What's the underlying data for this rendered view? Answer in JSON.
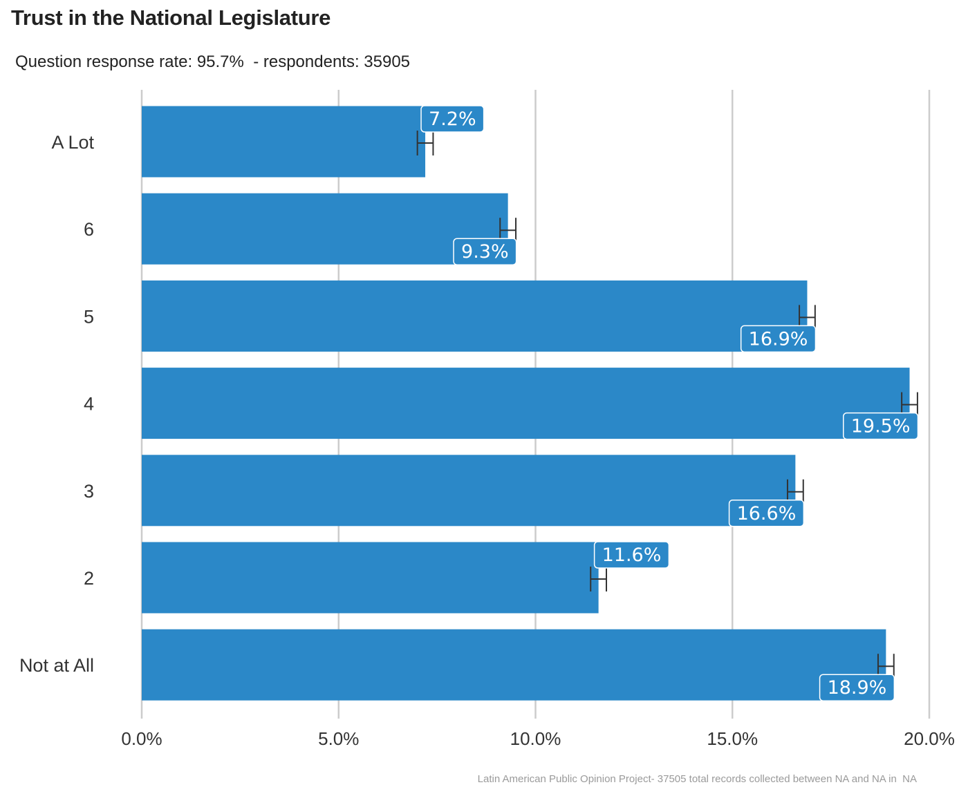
{
  "title": "Trust in the National Legislature",
  "subtitle": "Question response rate: 95.7%  - respondents: 35905",
  "caption": "Latin American Public Opinion Project- 37505 total records collected between NA and NA in  NA",
  "colors": {
    "bar": "#2b88c8",
    "grid": "#cccccc",
    "errorbar": "#333333",
    "label_border": "#ffffff"
  },
  "chart_data": {
    "type": "bar",
    "orientation": "horizontal",
    "categories": [
      "A Lot",
      "6",
      "5",
      "4",
      "3",
      "2",
      "Not at All"
    ],
    "values": [
      7.2,
      9.3,
      16.9,
      19.5,
      16.6,
      11.6,
      18.9
    ],
    "data_labels": [
      "7.2%",
      "9.3%",
      "16.9%",
      "19.5%",
      "16.6%",
      "11.6%",
      "18.9%"
    ],
    "error_bars": [
      {
        "low": 7.0,
        "high": 7.4
      },
      {
        "low": 9.1,
        "high": 9.5
      },
      {
        "low": 16.7,
        "high": 17.1
      },
      {
        "low": 19.3,
        "high": 19.7
      },
      {
        "low": 16.4,
        "high": 16.8
      },
      {
        "low": 11.4,
        "high": 11.8
      },
      {
        "low": 18.7,
        "high": 19.1
      }
    ],
    "label_placement": [
      "above",
      "below",
      "below",
      "below",
      "below",
      "above",
      "below"
    ],
    "xlim": [
      0,
      20
    ],
    "xticks": [
      0,
      5,
      10,
      15,
      20
    ],
    "xtick_labels": [
      "0.0%",
      "5.0%",
      "10.0%",
      "15.0%",
      "20.0%"
    ],
    "grid": "vertical"
  }
}
